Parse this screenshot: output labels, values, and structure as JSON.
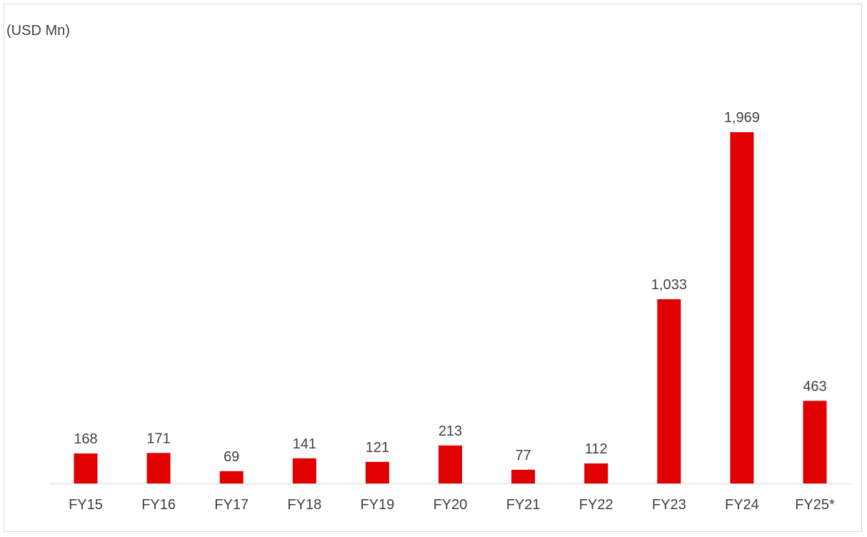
{
  "chart_data": {
    "type": "bar",
    "unit_label": "(USD Mn)",
    "categories": [
      "FY15",
      "FY16",
      "FY17",
      "FY18",
      "FY19",
      "FY20",
      "FY21",
      "FY22",
      "FY23",
      "FY24",
      "FY25*"
    ],
    "values": [
      168,
      171,
      69,
      141,
      121,
      213,
      77,
      112,
      1033,
      1969,
      463
    ],
    "value_labels": [
      "168",
      "171",
      "69",
      "141",
      "121",
      "213",
      "77",
      "112",
      "1,033",
      "1,969",
      "463"
    ],
    "bar_color": "#e00000",
    "axis_color": "#d9d9d9",
    "grid": false,
    "legend": "none",
    "ylim": [
      0,
      2000
    ]
  }
}
